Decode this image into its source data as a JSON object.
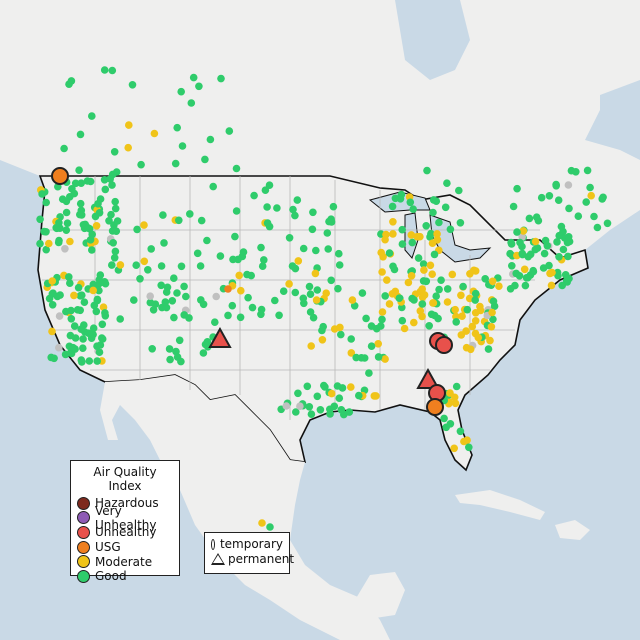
{
  "legend": {
    "title": "Air Quality Index",
    "items": [
      {
        "label": "Hazardous",
        "color": "#7e2a1e"
      },
      {
        "label": "Very Unhealthy",
        "color": "#8e5bb5"
      },
      {
        "label": "Unhealthy",
        "color": "#e8514b"
      },
      {
        "label": "USG",
        "color": "#ef7f1f"
      },
      {
        "label": "Moderate",
        "color": "#f0c419"
      },
      {
        "label": "Good",
        "color": "#2fcc6b"
      }
    ]
  },
  "monitor_types": {
    "items": [
      {
        "label": "temporary",
        "symbol": "circle"
      },
      {
        "label": "permanent",
        "symbol": "triangle"
      }
    ]
  },
  "map_colors": {
    "water": "#c9d9e6",
    "land": "#efefee",
    "border": "#111111",
    "state_line": "#b8b8b8",
    "no_data": "#c0c0c0"
  }
}
